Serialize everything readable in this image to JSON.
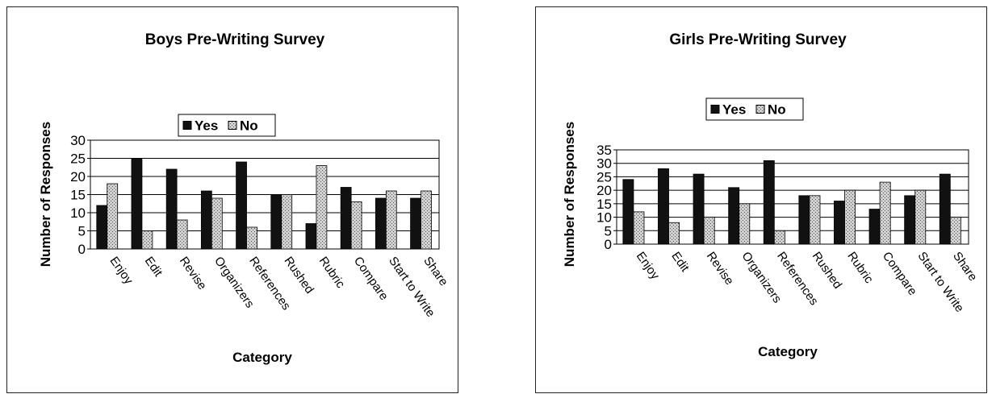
{
  "chart_data": [
    {
      "type": "bar",
      "title": "Boys Pre-Writing Survey",
      "xlabel": "Category",
      "ylabel": "Number of Responses",
      "categories": [
        "Enjoy",
        "Edit",
        "Revise",
        "Organizers",
        "References",
        "Rushed",
        "Rubric",
        "Compare",
        "Start to Write",
        "Share"
      ],
      "series": [
        {
          "name": "Yes",
          "values": [
            12,
            25,
            22,
            16,
            24,
            15,
            7,
            17,
            14,
            14
          ]
        },
        {
          "name": "No",
          "values": [
            18,
            5,
            8,
            14,
            6,
            15,
            23,
            13,
            16,
            16
          ]
        }
      ],
      "ylim": [
        0,
        30
      ],
      "yticks": [
        0,
        5,
        10,
        15,
        20,
        25,
        30
      ],
      "grid": true,
      "legend_position": "top-center"
    },
    {
      "type": "bar",
      "title": "Girls Pre-Writing Survey",
      "xlabel": "Category",
      "ylabel": "Number of Responses",
      "categories": [
        "Enjoy",
        "Edit",
        "Revise",
        "Organizers",
        "References",
        "Rushed",
        "Rubric",
        "Compare",
        "Start to Write",
        "Share"
      ],
      "series": [
        {
          "name": "Yes",
          "values": [
            24,
            28,
            26,
            21,
            31,
            18,
            16,
            13,
            18,
            26
          ]
        },
        {
          "name": "No",
          "values": [
            12,
            8,
            10,
            15,
            5,
            18,
            20,
            23,
            20,
            10
          ]
        }
      ],
      "ylim": [
        0,
        35
      ],
      "yticks": [
        0,
        5,
        10,
        15,
        20,
        25,
        30,
        35
      ],
      "grid": true,
      "legend_position": "top-center"
    }
  ],
  "colors": {
    "yes": "#111111",
    "no": "#d0d0d0",
    "grid": "#000000"
  }
}
